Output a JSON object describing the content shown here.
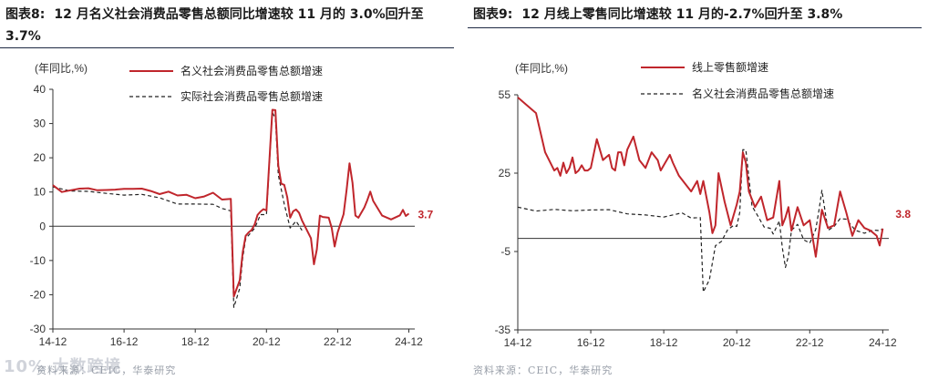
{
  "left": {
    "title_num": "图表8:",
    "title_text": "12 月名义社会消费品零售总额同比增速较 11 月的 3.0%回升至 3.7%",
    "source": "资料来源：CEIC，华泰研究",
    "watermark": "10% 大数跨境",
    "chart_data": {
      "type": "line",
      "unit_label": "(年同比,%)",
      "x_ticks": [
        "14-12",
        "16-12",
        "18-12",
        "20-12",
        "22-12",
        "24-12"
      ],
      "y_ticks": [
        40,
        30,
        20,
        10,
        0,
        -10,
        -20,
        -30
      ],
      "ylim": [
        -30,
        40
      ],
      "x_start": "2014-12",
      "x_end": "2025-02",
      "end_label": "3.7",
      "colors": {
        "nominal": "#c0262c",
        "real": "#222222"
      },
      "series": [
        {
          "name": "名义社会消费品零售总额增速",
          "style": "solid",
          "x": [
            "2014-12",
            "2015-03",
            "2015-06",
            "2015-09",
            "2015-12",
            "2016-03",
            "2016-06",
            "2016-09",
            "2016-12",
            "2017-03",
            "2017-06",
            "2017-09",
            "2017-12",
            "2018-03",
            "2018-06",
            "2018-09",
            "2018-12",
            "2019-03",
            "2019-06",
            "2019-09",
            "2019-12",
            "2020-01",
            "2020-03",
            "2020-04",
            "2020-05",
            "2020-06",
            "2020-07",
            "2020-08",
            "2020-09",
            "2020-10",
            "2020-11",
            "2020-12",
            "2021-02",
            "2021-03",
            "2021-04",
            "2021-05",
            "2021-06",
            "2021-07",
            "2021-08",
            "2021-09",
            "2021-10",
            "2021-11",
            "2021-12",
            "2022-03",
            "2022-04",
            "2022-05",
            "2022-06",
            "2022-07",
            "2022-09",
            "2022-10",
            "2022-11",
            "2022-12",
            "2023-02",
            "2023-03",
            "2023-04",
            "2023-05",
            "2023-06",
            "2023-07",
            "2023-09",
            "2023-10",
            "2023-11",
            "2023-12",
            "2024-03",
            "2024-06",
            "2024-09",
            "2024-10",
            "2024-11",
            "2024-12"
          ],
          "values": [
            12,
            10,
            10.5,
            11,
            11.1,
            10.5,
            10.6,
            10.7,
            10.9,
            10.9,
            11,
            10.3,
            9.4,
            10.1,
            9,
            9.2,
            8.2,
            8.7,
            9.8,
            7.8,
            8,
            -20.5,
            -15.8,
            -7.5,
            -2.8,
            -1.8,
            -1.1,
            0.5,
            3.3,
            4.3,
            5,
            4.6,
            34,
            33.9,
            17.7,
            12.4,
            12.1,
            8.5,
            2.5,
            4.4,
            4.9,
            3.9,
            1.7,
            -3.5,
            -11.1,
            -6.7,
            3.1,
            2.7,
            2.5,
            -0.5,
            -5.9,
            -1.8,
            3.5,
            10.6,
            18.4,
            12.7,
            3.1,
            2.5,
            5.5,
            7.6,
            10.1,
            7.4,
            3.1,
            2,
            3.2,
            4.8,
            3,
            3.7
          ]
        },
        {
          "name": "实际社会消费品零售总额增速",
          "style": "dashed",
          "x": [
            "2014-12",
            "2015-06",
            "2015-12",
            "2016-06",
            "2016-12",
            "2017-06",
            "2017-12",
            "2018-06",
            "2018-12",
            "2019-06",
            "2019-09",
            "2019-12",
            "2020-01",
            "2020-03",
            "2020-04",
            "2020-05",
            "2020-06",
            "2020-08",
            "2020-10",
            "2020-12",
            "2021-02",
            "2021-03",
            "2021-04",
            "2021-06",
            "2021-08",
            "2021-10",
            "2021-12"
          ],
          "values": [
            11.5,
            10.3,
            10.2,
            9.6,
            9.1,
            9.3,
            8.3,
            6.5,
            6.5,
            6.4,
            5.2,
            4.5,
            -23.7,
            -18.1,
            -9.1,
            -3.7,
            -2.6,
            -0.6,
            3.4,
            3.4,
            33.2,
            31.5,
            15,
            6.5,
            -0.5,
            1.5,
            -1.2
          ]
        }
      ]
    }
  },
  "right": {
    "title_num": "图表9:",
    "title_text": "12 月线上零售同比增速较 11 月的-2.7%回升至 3.8%",
    "source": "资料来源：CEIC，华泰研究",
    "chart_data": {
      "type": "line",
      "unit_label": "(年同比,%)",
      "x_ticks": [
        "14-12",
        "16-12",
        "18-12",
        "20-12",
        "22-12",
        "24-12"
      ],
      "y_ticks": [
        55,
        25,
        -5,
        -35
      ],
      "ylim": [
        -35,
        55
      ],
      "x_start": "2014-12",
      "x_end": "2025-02",
      "end_label": "3.8",
      "colors": {
        "online": "#c0262c",
        "nominal": "#222222"
      },
      "series": [
        {
          "name": "线上零售额增速",
          "style": "solid",
          "x": [
            "2014-12",
            "2015-06",
            "2015-09",
            "2015-12",
            "2016-01",
            "2016-02",
            "2016-03",
            "2016-04",
            "2016-05",
            "2016-06",
            "2016-07",
            "2016-08",
            "2016-09",
            "2016-10",
            "2016-11",
            "2016-12",
            "2017-02",
            "2017-04",
            "2017-05",
            "2017-06",
            "2017-07",
            "2017-08",
            "2017-09",
            "2017-10",
            "2017-11",
            "2017-12",
            "2018-02",
            "2018-04",
            "2018-06",
            "2018-08",
            "2018-10",
            "2018-11",
            "2018-12",
            "2019-02",
            "2019-03",
            "2019-05",
            "2019-07",
            "2019-09",
            "2019-11",
            "2019-12",
            "2020-01",
            "2020-03",
            "2020-04",
            "2020-05",
            "2020-06",
            "2020-08",
            "2020-10",
            "2020-12",
            "2021-01",
            "2021-02",
            "2021-03",
            "2021-04",
            "2021-06",
            "2021-08",
            "2021-10",
            "2021-12",
            "2022-02",
            "2022-03",
            "2022-04",
            "2022-05",
            "2022-06",
            "2022-08",
            "2022-10",
            "2022-12",
            "2023-02",
            "2023-04",
            "2023-06",
            "2023-08",
            "2023-10",
            "2023-12",
            "2024-02",
            "2024-04",
            "2024-06",
            "2024-08",
            "2024-10",
            "2024-11",
            "2024-12"
          ],
          "values": [
            54,
            48,
            33,
            26,
            27,
            24,
            29,
            25,
            27,
            31,
            25,
            26,
            28,
            26,
            26,
            27,
            38,
            30,
            31,
            32,
            27,
            26,
            33,
            33,
            28,
            34,
            39,
            30,
            27,
            33,
            30,
            26,
            28,
            32,
            29,
            24,
            21,
            18,
            22,
            17,
            22,
            10,
            2,
            5,
            25,
            14,
            5,
            13,
            18,
            33,
            29,
            18,
            12,
            16,
            7,
            8,
            22,
            5,
            8,
            12,
            3,
            12,
            5,
            7,
            -7,
            11,
            4,
            5,
            18,
            10,
            1,
            7,
            4,
            3,
            1,
            -2.7,
            3.8
          ]
        },
        {
          "name": "名义社会消费品零售总额增速",
          "style": "dashed",
          "x": [
            "2014-12",
            "2015-06",
            "2015-12",
            "2016-06",
            "2016-12",
            "2017-06",
            "2017-12",
            "2018-06",
            "2018-12",
            "2019-06",
            "2019-09",
            "2019-12",
            "2020-01",
            "2020-03",
            "2020-05",
            "2020-07",
            "2020-09",
            "2020-11",
            "2020-12",
            "2021-01",
            "2021-02",
            "2021-03",
            "2021-05",
            "2021-07",
            "2021-09",
            "2021-11",
            "2021-12",
            "2022-02",
            "2022-03",
            "2022-04",
            "2022-05",
            "2022-06",
            "2022-08",
            "2022-10",
            "2022-12",
            "2023-02",
            "2023-03",
            "2023-04",
            "2023-06",
            "2023-08",
            "2023-10",
            "2023-12",
            "2024-03",
            "2024-06",
            "2024-09",
            "2024-11",
            "2024-12"
          ],
          "values": [
            12,
            10.5,
            11.1,
            10.6,
            10.9,
            11,
            9.4,
            9,
            8.2,
            9.8,
            7.8,
            8,
            -20.5,
            -15.8,
            -2.8,
            -1.1,
            3.3,
            5,
            4.6,
            10,
            34,
            33.9,
            12.4,
            8.5,
            4.4,
            3.9,
            1.7,
            6.7,
            -3.5,
            -11.1,
            -6.7,
            3.1,
            5.4,
            -0.5,
            -1.8,
            3.5,
            10.6,
            18.4,
            3.1,
            4.6,
            7.6,
            7.4,
            3.1,
            2,
            3.2,
            3,
            3.7
          ]
        }
      ],
      "legend": [
        "线上零售额增速",
        "名义社会消费品零售总额增速"
      ]
    }
  }
}
